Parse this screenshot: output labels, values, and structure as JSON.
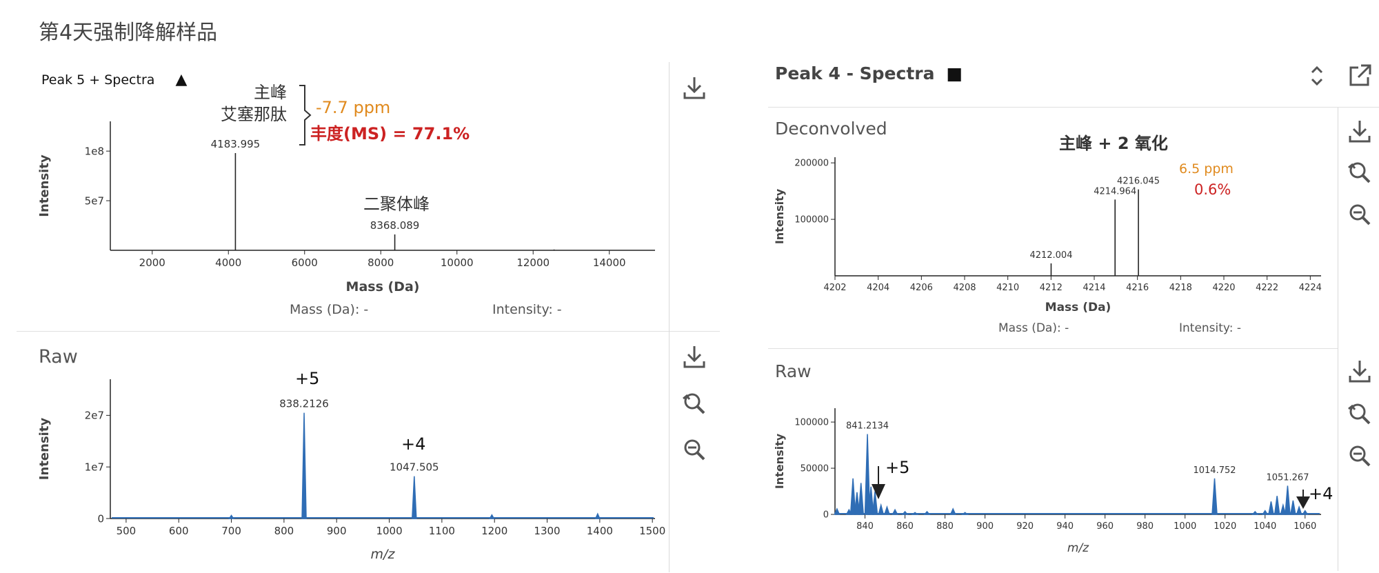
{
  "page": {
    "title": "第4天强制降解样品"
  },
  "left_top": {
    "title": "Peak 5 + Spectra",
    "title_marker": "▲",
    "annotation_main": [
      "主峰",
      "艾塞那肽"
    ],
    "annotation_ppm": "-7.7 ppm",
    "annotation_abundance": "丰度(MS) = 77.1%",
    "annotation_dimer": "二聚体峰",
    "readout_mass": "Mass (Da): -",
    "readout_intensity": "Intensity: -"
  },
  "left_bottom": {
    "title": "Raw",
    "charge_a": "+5",
    "charge_b": "+4"
  },
  "right_top": {
    "header_title": "Peak 4 - Spectra",
    "header_marker": "■",
    "title": "Deconvolved",
    "annotation_title": "主峰 + 2 氧化",
    "annotation_ppm": "6.5 ppm",
    "annotation_abundance": "0.6%",
    "readout_mass": "Mass (Da): -",
    "readout_intensity": "Intensity: -"
  },
  "right_bottom": {
    "title": "Raw",
    "charge_a": "+5",
    "charge_b": "+4"
  },
  "colors": {
    "peak": "#2f6db5",
    "ppm": "#e08a1e",
    "abundance": "#cc2222",
    "axis": "#222222",
    "icon": "#555555"
  },
  "chart_data": [
    {
      "id": "left-deconvolved",
      "type": "line",
      "xlabel": "Mass (Da)",
      "ylabel": "Intensity",
      "xlim": [
        900,
        15200
      ],
      "ylim": [
        0,
        130000000.0
      ],
      "xticks": [
        2000,
        4000,
        6000,
        8000,
        10000,
        12000,
        14000
      ],
      "yticks": [
        {
          "v": 50000000.0,
          "label": "5e7"
        },
        {
          "v": 100000000.0,
          "label": "1e8"
        }
      ],
      "peaks": [
        {
          "x": 4183.995,
          "y": 98000000.0,
          "label": "4183.995"
        },
        {
          "x": 8368.089,
          "y": 16000000.0,
          "label": "8368.089"
        },
        {
          "x": 12550,
          "y": 800000.0,
          "label": ""
        }
      ],
      "color": "#222222"
    },
    {
      "id": "left-raw",
      "type": "line",
      "xlabel": "m/z",
      "ylabel": "Intensity",
      "xlim": [
        470,
        1505
      ],
      "ylim": [
        0,
        27000000.0
      ],
      "xticks": [
        500,
        600,
        700,
        800,
        900,
        1000,
        1100,
        1200,
        1300,
        1400,
        1500
      ],
      "yticks": [
        {
          "v": 0,
          "label": "0"
        },
        {
          "v": 10000000.0,
          "label": "1e7"
        },
        {
          "v": 20000000.0,
          "label": "2e7"
        }
      ],
      "peaks": [
        {
          "x": 838.2126,
          "y": 20500000.0,
          "label": "838.2126"
        },
        {
          "x": 1047.505,
          "y": 8200000.0,
          "label": "1047.505"
        },
        {
          "x": 700,
          "y": 600000.0,
          "label": ""
        },
        {
          "x": 1195,
          "y": 700000.0,
          "label": ""
        },
        {
          "x": 1396,
          "y": 900000.0,
          "label": ""
        }
      ],
      "color": "#2f6db5"
    },
    {
      "id": "right-deconvolved",
      "type": "line",
      "xlabel": "Mass (Da)",
      "ylabel": "Intensity",
      "xlim": [
        4202,
        4224.5
      ],
      "ylim": [
        0,
        210000
      ],
      "xticks": [
        4202,
        4204,
        4206,
        4208,
        4210,
        4212,
        4214,
        4216,
        4218,
        4220,
        4222,
        4224
      ],
      "yticks": [
        {
          "v": 100000,
          "label": "100000"
        },
        {
          "v": 200000,
          "label": "200000"
        }
      ],
      "peaks": [
        {
          "x": 4212.004,
          "y": 22000,
          "label": "4212.004"
        },
        {
          "x": 4214.964,
          "y": 135000,
          "label": "4214.964"
        },
        {
          "x": 4216.045,
          "y": 153000,
          "label": "4216.045"
        }
      ],
      "color": "#222222"
    },
    {
      "id": "right-raw",
      "type": "line",
      "xlabel": "m/z",
      "ylabel": "Intensity",
      "xlim": [
        825,
        1068
      ],
      "ylim": [
        0,
        115000
      ],
      "xticks": [
        840,
        860,
        880,
        900,
        920,
        940,
        960,
        980,
        1000,
        1020,
        1040,
        1060
      ],
      "yticks": [
        {
          "v": 0,
          "label": "0"
        },
        {
          "v": 50000,
          "label": "50000"
        },
        {
          "v": 100000,
          "label": "100000"
        }
      ],
      "peaks": [
        {
          "x": 826,
          "y": 6000,
          "label": ""
        },
        {
          "x": 832,
          "y": 5000,
          "label": ""
        },
        {
          "x": 834,
          "y": 39000,
          "label": ""
        },
        {
          "x": 836,
          "y": 24000,
          "label": ""
        },
        {
          "x": 838,
          "y": 34000,
          "label": ""
        },
        {
          "x": 841.2134,
          "y": 87000,
          "label": "841.2134"
        },
        {
          "x": 843,
          "y": 30000,
          "label": ""
        },
        {
          "x": 845,
          "y": 25000,
          "label": ""
        },
        {
          "x": 848,
          "y": 10000,
          "label": ""
        },
        {
          "x": 851,
          "y": 8000,
          "label": ""
        },
        {
          "x": 855,
          "y": 5000,
          "label": ""
        },
        {
          "x": 860,
          "y": 3000,
          "label": ""
        },
        {
          "x": 865,
          "y": 2000,
          "label": ""
        },
        {
          "x": 871,
          "y": 3000,
          "label": ""
        },
        {
          "x": 884,
          "y": 6000,
          "label": ""
        },
        {
          "x": 890,
          "y": 2000,
          "label": ""
        },
        {
          "x": 1014.752,
          "y": 39000,
          "label": "1014.752"
        },
        {
          "x": 1035,
          "y": 3000,
          "label": ""
        },
        {
          "x": 1040,
          "y": 4000,
          "label": ""
        },
        {
          "x": 1043,
          "y": 14000,
          "label": ""
        },
        {
          "x": 1046,
          "y": 20000,
          "label": ""
        },
        {
          "x": 1049,
          "y": 10000,
          "label": ""
        },
        {
          "x": 1051.267,
          "y": 31000,
          "label": "1051.267"
        },
        {
          "x": 1054,
          "y": 15000,
          "label": ""
        },
        {
          "x": 1057,
          "y": 8000,
          "label": ""
        },
        {
          "x": 1060,
          "y": 4000,
          "label": ""
        }
      ],
      "color": "#2f6db5"
    }
  ]
}
